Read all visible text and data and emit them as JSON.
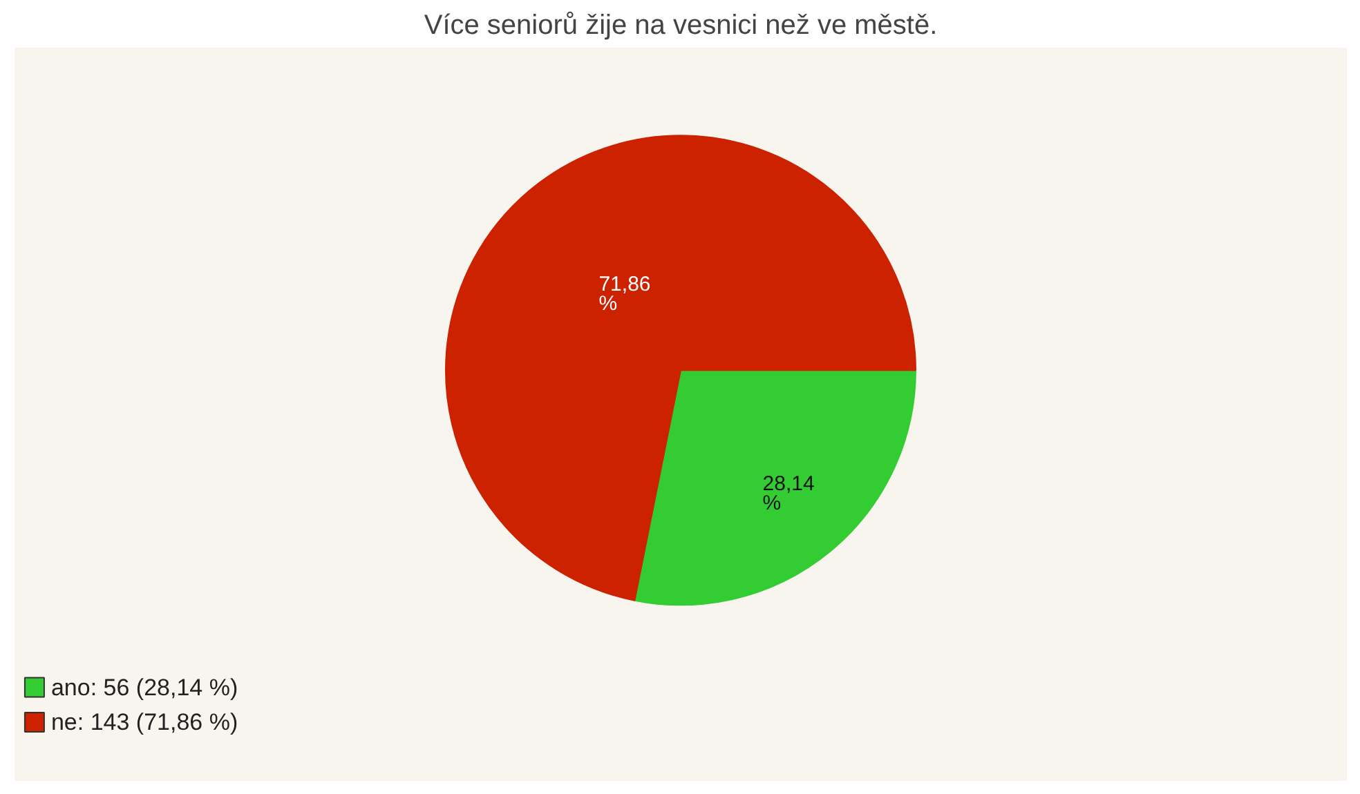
{
  "chart_data": {
    "type": "pie",
    "title": "Více seniorů žije na vesnici než ve městě.",
    "categories": [
      "ano: 56 (28,14 %)",
      "ne: 143 (71,86 %)"
    ],
    "values": [
      28.14,
      71.86
    ],
    "colors": [
      "#33cc33",
      "#cc2200"
    ],
    "value_labels": [
      "28,14 %",
      "71,86 %"
    ],
    "legend": "bottom left"
  }
}
